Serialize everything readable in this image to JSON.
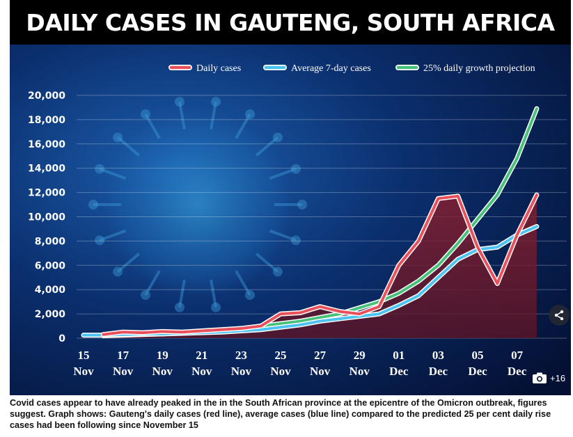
{
  "title": "DAILY CASES IN GAUTENG, SOUTH AFRICA",
  "caption": "Covid cases appear to have already peaked in the in the South African province at the epicentre of the Omicron outbreak, figures suggest. Graph shows: Gauteng's daily cases (red line), average cases (blue line) compared to the predicted 25 per cent daily rise cases had been following since November 15",
  "photo_count": "+16",
  "colors": {
    "daily": "#e8505b",
    "average": "#4cc3f0",
    "projection": "#47c07a"
  },
  "chart_data": {
    "type": "line",
    "title": "DAILY CASES IN GAUTENG, SOUTH AFRICA",
    "xlabel": "",
    "ylabel": "",
    "ylim": [
      0,
      20000
    ],
    "yticks": [
      "0",
      "2,000",
      "4,000",
      "6,000",
      "8,000",
      "10,000",
      "12,000",
      "14,000",
      "16,000",
      "18,000",
      "20,000"
    ],
    "xticks": [
      {
        "day": 15,
        "top": "15",
        "bottom": "Nov"
      },
      {
        "day": 17,
        "top": "17",
        "bottom": "Nov"
      },
      {
        "day": 19,
        "top": "19",
        "bottom": "Nov"
      },
      {
        "day": 21,
        "top": "21",
        "bottom": "Nov"
      },
      {
        "day": 23,
        "top": "23",
        "bottom": "Nov"
      },
      {
        "day": 25,
        "top": "25",
        "bottom": "Nov"
      },
      {
        "day": 27,
        "top": "27",
        "bottom": "Nov"
      },
      {
        "day": 29,
        "top": "29",
        "bottom": "Nov"
      },
      {
        "day": 31,
        "top": "01",
        "bottom": "Dec"
      },
      {
        "day": 33,
        "top": "03",
        "bottom": "Dec"
      },
      {
        "day": 35,
        "top": "05",
        "bottom": "Dec"
      },
      {
        "day": 37,
        "top": "07",
        "bottom": "Dec"
      }
    ],
    "legend": [
      "Daily cases",
      "Average 7-day cases",
      "25% daily growth projection"
    ],
    "series": [
      {
        "name": "Daily cases",
        "key": "daily",
        "x": [
          16,
          17,
          18,
          19,
          20,
          21,
          22,
          23,
          24,
          25,
          26,
          27,
          28,
          29,
          30,
          31,
          32,
          33,
          34,
          35,
          36,
          37,
          38
        ],
        "values": [
          300,
          500,
          450,
          550,
          500,
          600,
          700,
          800,
          1000,
          2000,
          2100,
          2600,
          2200,
          2000,
          2600,
          6000,
          8000,
          11500,
          11700,
          7500,
          4500,
          8500,
          11800
        ]
      },
      {
        "name": "Average 7-day cases",
        "key": "average",
        "x": [
          15,
          16,
          17,
          18,
          19,
          20,
          21,
          22,
          23,
          24,
          25,
          26,
          27,
          28,
          29,
          30,
          31,
          32,
          33,
          34,
          35,
          36,
          37,
          38
        ],
        "values": [
          250,
          250,
          300,
          350,
          350,
          400,
          450,
          500,
          600,
          700,
          900,
          1100,
          1400,
          1600,
          1800,
          2000,
          2700,
          3500,
          5000,
          6500,
          7300,
          7500,
          8500,
          9200
        ]
      },
      {
        "name": "25% daily growth projection",
        "key": "projection",
        "x": [
          16,
          17,
          18,
          19,
          20,
          21,
          22,
          23,
          24,
          25,
          26,
          27,
          28,
          29,
          30,
          31,
          32,
          33,
          34,
          35,
          36,
          37,
          38
        ],
        "values": [
          200,
          250,
          300,
          350,
          450,
          550,
          650,
          800,
          1000,
          1200,
          1400,
          1700,
          2000,
          2500,
          3000,
          3700,
          4700,
          6000,
          7800,
          9800,
          11800,
          14800,
          18900
        ]
      }
    ]
  }
}
